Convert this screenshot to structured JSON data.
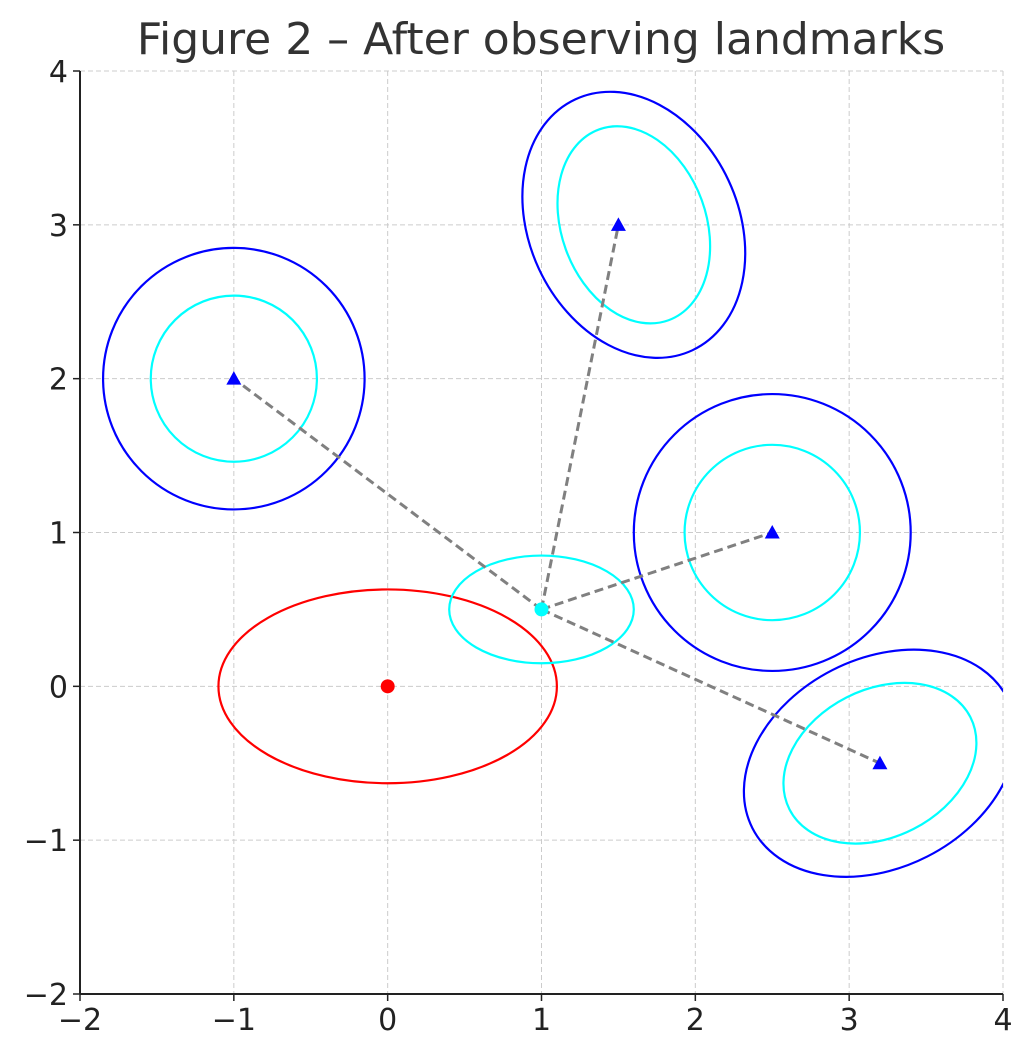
{
  "chart_data": {
    "type": "scatter",
    "title": "Figure 2 – After observing landmarks",
    "xlabel": "",
    "ylabel": "",
    "xlim": [
      -2,
      4
    ],
    "ylim": [
      -2,
      4
    ],
    "xticks": [
      -2,
      -1,
      0,
      1,
      2,
      3,
      4
    ],
    "yticks": [
      -2,
      -1,
      0,
      1,
      2,
      3,
      4
    ],
    "xtick_labels": [
      "−2",
      "−1",
      "0",
      "1",
      "2",
      "3",
      "4"
    ],
    "ytick_labels": [
      "−2",
      "−1",
      "0",
      "1",
      "2",
      "3",
      "4"
    ],
    "grid": true,
    "colors": {
      "initial": "#ff0000",
      "posterior": "#00ffff",
      "landmark": "#0000ff",
      "ray": "#808080",
      "axis": "#222222",
      "grid": "#cccccc",
      "title": "#333333"
    },
    "initial_pose": {
      "x": 0,
      "y": 0
    },
    "initial_ellipse": {
      "cx": 0,
      "cy": 0,
      "rx": 1.1,
      "ry": 0.63,
      "angle": 0
    },
    "updated_pose": {
      "x": 1,
      "y": 0.5
    },
    "updated_ellipse": {
      "cx": 1,
      "cy": 0.5,
      "rx": 0.6,
      "ry": 0.35,
      "angle": 0
    },
    "landmarks": [
      {
        "x": -1,
        "y": 2,
        "outer": {
          "rx": 0.85,
          "ry": 0.85,
          "angle": 0
        },
        "inner": {
          "rx": 0.54,
          "ry": 0.54,
          "angle": 0
        },
        "center_offset": [
          0,
          0
        ]
      },
      {
        "x": 1.5,
        "y": 3,
        "outer": {
          "rx": 0.68,
          "ry": 0.9,
          "angle": -25
        },
        "inner": {
          "rx": 0.47,
          "ry": 0.66,
          "angle": -20
        },
        "center_offset": [
          0.1,
          0
        ]
      },
      {
        "x": 2.5,
        "y": 1,
        "outer": {
          "rx": 0.9,
          "ry": 0.9,
          "angle": 0
        },
        "inner": {
          "rx": 0.57,
          "ry": 0.57,
          "angle": 0
        },
        "center_offset": [
          0,
          0
        ]
      },
      {
        "x": 3.2,
        "y": -0.5,
        "outer": {
          "rx": 0.93,
          "ry": 0.68,
          "angle": -27
        },
        "inner": {
          "rx": 0.66,
          "ry": 0.48,
          "angle": -27
        },
        "center_offset": [
          0,
          0
        ]
      }
    ]
  }
}
